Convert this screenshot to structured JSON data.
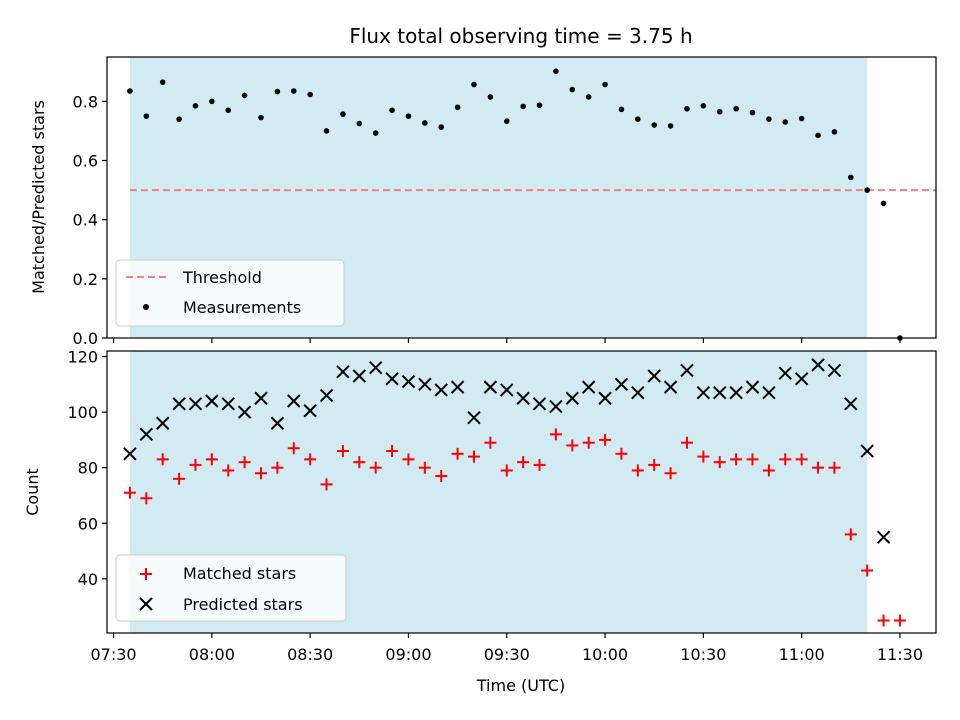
{
  "chart_data": [
    {
      "type": "scatter",
      "title": "Flux total observing time = 3.75 h",
      "xlabel": "",
      "ylabel": "Matched/Predicted stars",
      "ylim": [
        0,
        0.95
      ],
      "xlim": [
        "07:28",
        "11:41"
      ],
      "yticks": [
        0.0,
        0.2,
        0.4,
        0.6,
        0.8
      ],
      "xticks": [
        "07:30",
        "08:00",
        "08:30",
        "09:00",
        "09:30",
        "10:00",
        "10:30",
        "11:00",
        "11:30"
      ],
      "shaded_span": [
        "07:35",
        "11:20"
      ],
      "shade_color": "#add8e6",
      "threshold": {
        "name": "Threshold",
        "y": 0.5,
        "color": "#f08080",
        "style": "dashed"
      },
      "series": [
        {
          "name": "Measurements",
          "marker": "dot",
          "color": "#000000",
          "points": [
            [
              "07:35",
              0.835
            ],
            [
              "07:40",
              0.75
            ],
            [
              "07:45",
              0.865
            ],
            [
              "07:50",
              0.74
            ],
            [
              "07:55",
              0.785
            ],
            [
              "08:00",
              0.8
            ],
            [
              "08:05",
              0.77
            ],
            [
              "08:10",
              0.82
            ],
            [
              "08:15",
              0.745
            ],
            [
              "08:20",
              0.833
            ],
            [
              "08:25",
              0.835
            ],
            [
              "08:30",
              0.823
            ],
            [
              "08:35",
              0.7
            ],
            [
              "08:40",
              0.757
            ],
            [
              "08:45",
              0.725
            ],
            [
              "08:50",
              0.693
            ],
            [
              "08:55",
              0.77
            ],
            [
              "09:00",
              0.75
            ],
            [
              "09:05",
              0.727
            ],
            [
              "09:10",
              0.713
            ],
            [
              "09:15",
              0.78
            ],
            [
              "09:20",
              0.857
            ],
            [
              "09:25",
              0.815
            ],
            [
              "09:30",
              0.733
            ],
            [
              "09:35",
              0.783
            ],
            [
              "09:40",
              0.787
            ],
            [
              "09:45",
              0.902
            ],
            [
              "09:50",
              0.84
            ],
            [
              "09:55",
              0.815
            ],
            [
              "10:00",
              0.857
            ],
            [
              "10:05",
              0.773
            ],
            [
              "10:10",
              0.74
            ],
            [
              "10:15",
              0.72
            ],
            [
              "10:20",
              0.717
            ],
            [
              "10:25",
              0.775
            ],
            [
              "10:30",
              0.785
            ],
            [
              "10:35",
              0.765
            ],
            [
              "10:40",
              0.775
            ],
            [
              "10:45",
              0.762
            ],
            [
              "10:50",
              0.74
            ],
            [
              "10:55",
              0.73
            ],
            [
              "11:00",
              0.742
            ],
            [
              "11:05",
              0.685
            ],
            [
              "11:10",
              0.697
            ],
            [
              "11:15",
              0.543
            ],
            [
              "11:20",
              0.5
            ],
            [
              "11:25",
              0.455
            ],
            [
              "11:30",
              0.0
            ]
          ]
        }
      ],
      "legend": {
        "placement": "lower-left",
        "entries": [
          "Threshold",
          "Measurements"
        ]
      }
    },
    {
      "type": "scatter",
      "title": "",
      "xlabel": "Time (UTC)",
      "ylabel": "Count",
      "ylim": [
        20.5,
        122
      ],
      "xlim": [
        "07:28",
        "11:41"
      ],
      "yticks": [
        40,
        60,
        80,
        100,
        120
      ],
      "xticks": [
        "07:30",
        "08:00",
        "08:30",
        "09:00",
        "09:30",
        "10:00",
        "10:30",
        "11:00",
        "11:30"
      ],
      "shaded_span": [
        "07:35",
        "11:20"
      ],
      "shade_color": "#add8e6",
      "series": [
        {
          "name": "Matched stars",
          "marker": "plus",
          "color": "#ff0000",
          "points": [
            [
              "07:35",
              71
            ],
            [
              "07:40",
              69
            ],
            [
              "07:45",
              83
            ],
            [
              "07:50",
              76
            ],
            [
              "07:55",
              81
            ],
            [
              "08:00",
              83
            ],
            [
              "08:05",
              79
            ],
            [
              "08:10",
              82
            ],
            [
              "08:15",
              78
            ],
            [
              "08:20",
              80
            ],
            [
              "08:25",
              87
            ],
            [
              "08:30",
              83
            ],
            [
              "08:35",
              74
            ],
            [
              "08:40",
              86
            ],
            [
              "08:45",
              82
            ],
            [
              "08:50",
              80
            ],
            [
              "08:55",
              86
            ],
            [
              "09:00",
              83
            ],
            [
              "09:05",
              80
            ],
            [
              "09:10",
              77
            ],
            [
              "09:15",
              85
            ],
            [
              "09:20",
              84
            ],
            [
              "09:25",
              89
            ],
            [
              "09:30",
              79
            ],
            [
              "09:35",
              82
            ],
            [
              "09:40",
              81
            ],
            [
              "09:45",
              92
            ],
            [
              "09:50",
              88
            ],
            [
              "09:55",
              89
            ],
            [
              "10:00",
              90
            ],
            [
              "10:05",
              85
            ],
            [
              "10:10",
              79
            ],
            [
              "10:15",
              81
            ],
            [
              "10:20",
              78
            ],
            [
              "10:25",
              89
            ],
            [
              "10:30",
              84
            ],
            [
              "10:35",
              82
            ],
            [
              "10:40",
              83
            ],
            [
              "10:45",
              83
            ],
            [
              "10:50",
              79
            ],
            [
              "10:55",
              83
            ],
            [
              "11:00",
              83
            ],
            [
              "11:05",
              80
            ],
            [
              "11:10",
              80
            ],
            [
              "11:15",
              56
            ],
            [
              "11:20",
              43
            ],
            [
              "11:25",
              25
            ],
            [
              "11:30",
              25
            ]
          ]
        },
        {
          "name": "Predicted stars",
          "marker": "x",
          "color": "#000000",
          "points": [
            [
              "07:35",
              85
            ],
            [
              "07:40",
              92
            ],
            [
              "07:45",
              96
            ],
            [
              "07:50",
              103
            ],
            [
              "07:55",
              103
            ],
            [
              "08:00",
              104
            ],
            [
              "08:05",
              103
            ],
            [
              "08:10",
              100
            ],
            [
              "08:15",
              105
            ],
            [
              "08:20",
              96
            ],
            [
              "08:25",
              104
            ],
            [
              "08:30",
              100.5
            ],
            [
              "08:35",
              106
            ],
            [
              "08:40",
              114.5
            ],
            [
              "08:45",
              113
            ],
            [
              "08:50",
              116
            ],
            [
              "08:55",
              112
            ],
            [
              "09:00",
              111
            ],
            [
              "09:05",
              110
            ],
            [
              "09:10",
              108
            ],
            [
              "09:15",
              109
            ],
            [
              "09:20",
              98
            ],
            [
              "09:25",
              109
            ],
            [
              "09:30",
              108
            ],
            [
              "09:35",
              105
            ],
            [
              "09:40",
              103
            ],
            [
              "09:45",
              102
            ],
            [
              "09:50",
              105
            ],
            [
              "09:55",
              109
            ],
            [
              "10:00",
              105
            ],
            [
              "10:05",
              110
            ],
            [
              "10:10",
              107
            ],
            [
              "10:15",
              113
            ],
            [
              "10:20",
              109
            ],
            [
              "10:25",
              115
            ],
            [
              "10:30",
              107
            ],
            [
              "10:35",
              107
            ],
            [
              "10:40",
              107
            ],
            [
              "10:45",
              109
            ],
            [
              "10:50",
              107
            ],
            [
              "10:55",
              114
            ],
            [
              "11:00",
              112
            ],
            [
              "11:05",
              117
            ],
            [
              "11:10",
              115
            ],
            [
              "11:15",
              103
            ],
            [
              "11:20",
              86
            ],
            [
              "11:25",
              55
            ]
          ]
        }
      ],
      "legend": {
        "placement": "lower-left",
        "entries": [
          "Matched stars",
          "Predicted stars"
        ]
      }
    }
  ]
}
